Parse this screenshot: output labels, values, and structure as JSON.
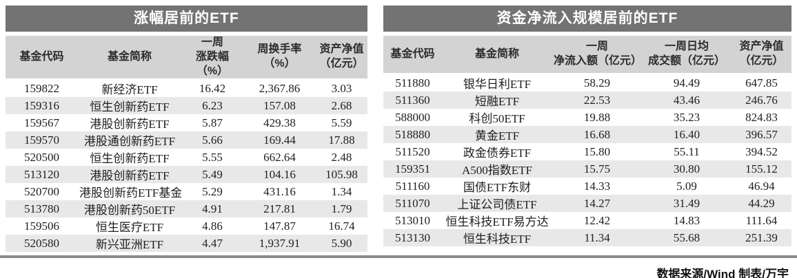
{
  "meta": {
    "source_note": "数据来源/Wind 制表/万宇"
  },
  "colors": {
    "title_bar_bg": "#737373",
    "title_text": "#ffffff",
    "header_bg": "#d3d3d3",
    "row_stripe": "#e8e8e8",
    "divider": "#8a8a8a",
    "body_text": "#1e1e1e"
  },
  "chart_data": [
    {
      "type": "table",
      "title": "涨幅居前的ETF",
      "columns": [
        {
          "key": "fund-code",
          "label": "基金代码"
        },
        {
          "key": "fund-name",
          "label": "基金简称"
        },
        {
          "key": "weekly-change-pct",
          "label": "一周\n涨跌幅（%）"
        },
        {
          "key": "weekly-turnover-pct",
          "label": "周换手率\n（%）"
        },
        {
          "key": "net-asset-value",
          "label": "资产净值\n（亿元）"
        }
      ],
      "rows": [
        [
          "159822",
          "新经济ETF",
          "16.42",
          "2,367.86",
          "3.03"
        ],
        [
          "159316",
          "恒生创新药ETF",
          "6.23",
          "157.08",
          "2.68"
        ],
        [
          "159567",
          "港股创新药ETF",
          "5.87",
          "429.38",
          "5.59"
        ],
        [
          "159570",
          "港股通创新药ETF",
          "5.66",
          "169.44",
          "17.88"
        ],
        [
          "520500",
          "恒生创新药ETF",
          "5.55",
          "662.64",
          "2.48"
        ],
        [
          "513120",
          "港股创新药ETF",
          "5.49",
          "104.16",
          "105.98"
        ],
        [
          "520700",
          "港股创新药ETF基金",
          "5.29",
          "431.16",
          "1.34"
        ],
        [
          "513780",
          "港股创新药50ETF",
          "4.91",
          "217.81",
          "1.79"
        ],
        [
          "159506",
          "恒生医疗ETF",
          "4.86",
          "147.87",
          "16.74"
        ],
        [
          "520580",
          "新兴亚洲ETF",
          "4.47",
          "1,937.91",
          "5.90"
        ]
      ]
    },
    {
      "type": "table",
      "title": "资金净流入规模居前的ETF",
      "columns": [
        {
          "key": "fund-code",
          "label": "基金代码"
        },
        {
          "key": "fund-name",
          "label": "基金简称"
        },
        {
          "key": "weekly-net-inflow",
          "label": "一周\n净流入额（亿元）"
        },
        {
          "key": "weekly-avg-daily-turnover",
          "label": "一周日均\n成交额（亿元）"
        },
        {
          "key": "net-asset-value",
          "label": "资产净值\n（亿元）"
        }
      ],
      "rows": [
        [
          "511880",
          "银华日利ETF",
          "58.29",
          "94.49",
          "647.85"
        ],
        [
          "511360",
          "短融ETF",
          "22.53",
          "43.46",
          "246.76"
        ],
        [
          "588000",
          "科创50ETF",
          "19.88",
          "35.23",
          "824.83"
        ],
        [
          "518880",
          "黄金ETF",
          "16.68",
          "16.40",
          "396.57"
        ],
        [
          "511520",
          "政金债券ETF",
          "15.80",
          "55.11",
          "394.52"
        ],
        [
          "159351",
          "A500指数ETF",
          "15.75",
          "30.80",
          "155.12"
        ],
        [
          "511160",
          "国债ETF东财",
          "14.33",
          "5.09",
          "46.94"
        ],
        [
          "511070",
          "上证公司债ETF",
          "14.27",
          "31.49",
          "44.29"
        ],
        [
          "513010",
          "恒生科技ETF易方达",
          "12.42",
          "14.83",
          "111.64"
        ],
        [
          "513130",
          "恒生科技ETF",
          "11.34",
          "55.68",
          "251.39"
        ]
      ]
    }
  ]
}
